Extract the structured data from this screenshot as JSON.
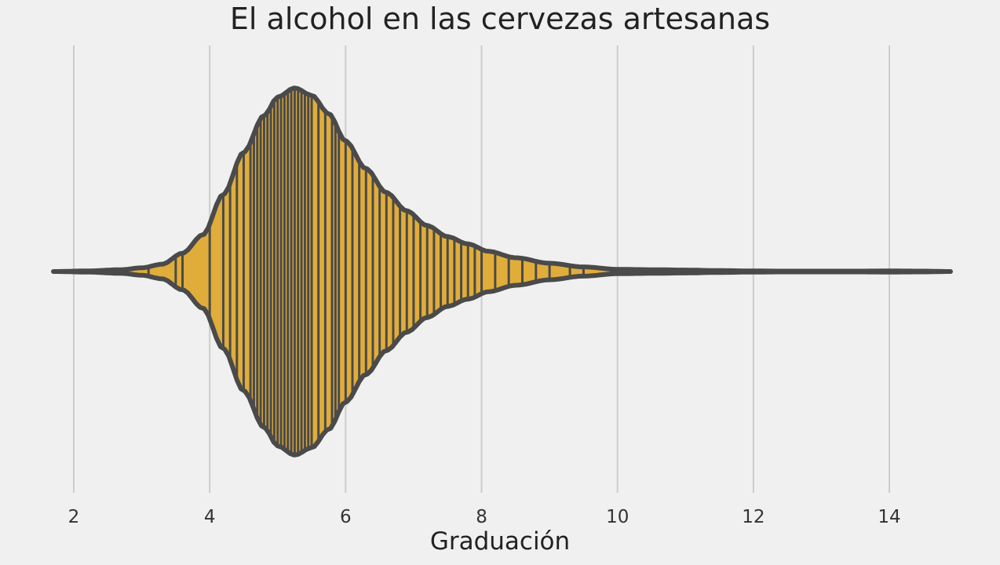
{
  "chart_data": {
    "type": "violin",
    "title": "El alcohol en las cervezas artesanas",
    "xlabel": "Graduación",
    "ylabel": "",
    "xlim": [
      1.7,
      14.9
    ],
    "xticks": [
      2,
      4,
      6,
      8,
      10,
      12,
      14
    ],
    "tick_labels": [
      "2",
      "4",
      "6",
      "8",
      "10",
      "12",
      "14"
    ],
    "grid": true,
    "orientation": "horizontal",
    "inner": "stick",
    "fill_color": "#e0ad3a",
    "outline_color": "#4a4a4a",
    "background": "#f0f0f0",
    "grid_color": "#cccccc",
    "density_profile": {
      "x": [
        1.7,
        2.2,
        2.7,
        3.0,
        3.3,
        3.6,
        3.9,
        4.2,
        4.5,
        4.8,
        5.0,
        5.25,
        5.5,
        5.75,
        6.0,
        6.3,
        6.6,
        6.9,
        7.2,
        7.5,
        7.8,
        8.1,
        8.5,
        9.0,
        9.5,
        10.0,
        10.5,
        11.0,
        11.5,
        12.0,
        12.5,
        13.0,
        13.5,
        14.0,
        14.5,
        14.9
      ],
      "relative_width": [
        0.0,
        0.003,
        0.01,
        0.02,
        0.04,
        0.1,
        0.2,
        0.42,
        0.65,
        0.85,
        0.95,
        1.0,
        0.96,
        0.86,
        0.71,
        0.56,
        0.43,
        0.33,
        0.25,
        0.19,
        0.15,
        0.11,
        0.075,
        0.045,
        0.025,
        0.012,
        0.01,
        0.008,
        0.005,
        0.003,
        0.002,
        0.002,
        0.002,
        0.003,
        0.002,
        0.0
      ]
    },
    "observations": [
      3.1,
      3.5,
      3.6,
      4.0,
      4.2,
      4.3,
      4.4,
      4.5,
      4.6,
      4.65,
      4.7,
      4.75,
      4.8,
      4.85,
      4.9,
      4.95,
      5.0,
      5.05,
      5.1,
      5.15,
      5.2,
      5.25,
      5.3,
      5.35,
      5.4,
      5.45,
      5.5,
      5.6,
      5.7,
      5.8,
      5.85,
      5.9,
      6.0,
      6.1,
      6.2,
      6.3,
      6.4,
      6.5,
      6.6,
      6.7,
      6.8,
      6.9,
      7.0,
      7.1,
      7.2,
      7.3,
      7.4,
      7.5,
      7.6,
      7.7,
      7.8,
      7.9,
      8.0,
      8.2,
      8.4,
      8.6,
      8.8,
      9.0,
      9.3,
      9.5,
      9.9,
      10.0,
      10.4,
      10.5,
      11.0
    ]
  }
}
